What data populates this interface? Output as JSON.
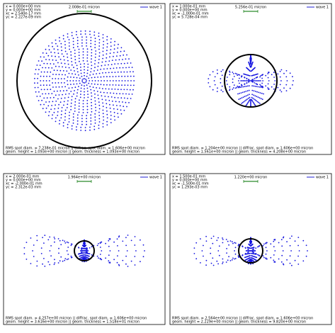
{
  "panels": [
    {
      "position": [
        "x = 0.000e+00 mm",
        "y = 0.000e+00 mm",
        "xc = 2.540e-17 mm",
        "yc = 2.227e-09 mm"
      ],
      "scale_label": "2.008e-01 micron",
      "legend": "wave 1",
      "footer": [
        "RMS spot diam. = 7.238e-01 micron || diffrac. spot diam. = 1.606e+00 micron",
        "geom. height = 1.093e+00 micron || geom. thickness = 1.093e+00 micron"
      ]
    },
    {
      "position": [
        "x = 1.000e-01 mm",
        "y = 0.000e+00 mm",
        "xc = -1.000e-01 mm",
        "yc = 5.728e-04 mm"
      ],
      "scale_label": "5.256e-01 micron",
      "legend": "wave 1",
      "footer": [
        "RMS spot diam. = 1.204e+00 micron || diffrac. spot diam. = 1.606e+00 micron",
        "geom. height = 1.561e+00 micron || geom. thickness = 4.208e+00 micron"
      ]
    },
    {
      "position": [
        "x = 2.000e-01 mm",
        "y = 0.000e+00 mm",
        "xc = -2.000e-01 mm",
        "yc = 2.312e-03 mm"
      ],
      "scale_label": "1.964e+00 micron",
      "legend": "wave 1",
      "footer": [
        "RMS spot diam. = 4.257e+00 micron || diffrac. spot diam. = 1.606e+00 micron",
        "geom. height = 3.616e+00 micron || geom. thickness = 1.518e+01 micron"
      ]
    },
    {
      "position": [
        "x = 1.500e-01 mm",
        "y = 0.000e+00 mm",
        "xc = -1.500e-01 mm",
        "yc = 1.293e-03 mm"
      ],
      "scale_label": "1.220e+00 micron",
      "legend": "wave 1",
      "footer": [
        "RMS spot diam. = 2.564e+00 micron || diffrac. spot diam. = 1.606e+00 micron",
        "geom. height = 2.229e+00 micron || geom. thickness = 9.820e+00 micron"
      ]
    }
  ]
}
